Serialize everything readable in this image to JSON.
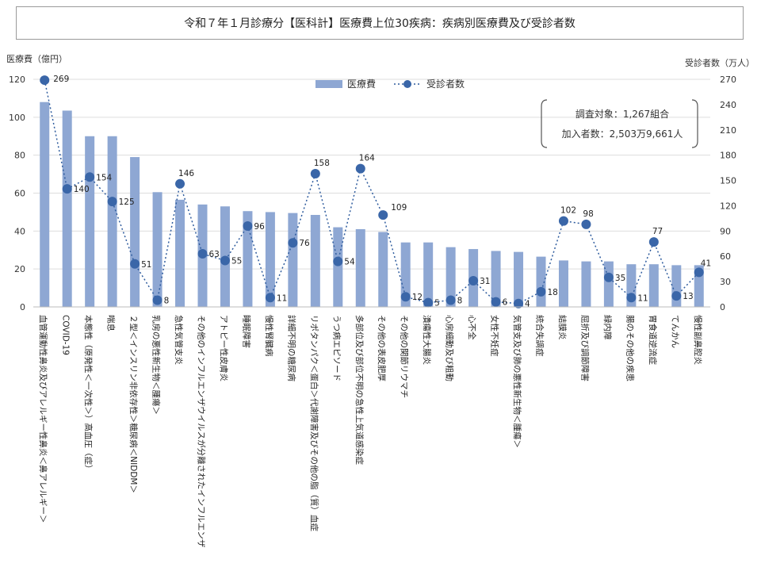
{
  "title": "令和７年１月診療分【医科計】医療費上位30疾病：疾病別医療費及び受診者数",
  "note": {
    "line1": "調査対象：1,267組合",
    "line2": "加入者数：2,503万9,661人"
  },
  "colors": {
    "bar": "#8ea7d3",
    "line": "#2f5c9e",
    "marker": "#3a66a8"
  },
  "chart_data": {
    "type": "bar+line",
    "ylabel_left": "医療費（億円）",
    "ylabel_right": "受診者数（万人）",
    "ylim_left": [
      0,
      120
    ],
    "yticks_left": [
      0,
      20,
      40,
      60,
      80,
      100,
      120
    ],
    "ylim_right": [
      0,
      270
    ],
    "yticks_right": [
      0,
      30,
      60,
      90,
      120,
      150,
      180,
      210,
      240,
      270
    ],
    "legend": {
      "placement": "top-center",
      "bar": "医療費",
      "line": "受診者数"
    },
    "categories": [
      "血管運動性鼻炎及びアレルギー性鼻炎＜鼻アレルギー＞",
      "COVID-19",
      "本態性（原発性＜一次性＞）高血圧（症）",
      "喘息",
      "２型＜インスリン非依存性＞糖尿病＜NIDDM＞",
      "乳房の悪性新生物＜腫瘍＞",
      "急性気管支炎",
      "その他のインフルエンザウイルスが分離されたインフルエンザ",
      "アトピー性皮膚炎",
      "睡眠障害",
      "慢性腎臓病",
      "詳細不明の糖尿病",
      "リポタンパク＜蛋白＞代謝障害及びその他の脂（質）血症",
      "うつ病エピソード",
      "多部位及び部位不明の急性上気道感染症",
      "その他の表皮肥厚",
      "その他の関節リウマチ",
      "潰瘍性大腸炎",
      "心房細動及び粗動",
      "心不全",
      "女性不妊症",
      "気管支及び肺の悪性新生物＜腫瘍＞",
      "統合失調症",
      "結膜炎",
      "屈折及び調節障害",
      "緑内障",
      "腸のその他の疾患",
      "胃食道逆流症",
      "てんかん",
      "慢性副鼻腔炎"
    ],
    "series": [
      {
        "name": "医療費",
        "type": "bar",
        "axis": "left",
        "values": [
          108,
          103.5,
          90,
          90,
          79,
          60.5,
          56.5,
          54,
          53,
          50.5,
          50,
          49.5,
          48.5,
          42,
          41,
          39.5,
          34,
          34,
          31.5,
          30.5,
          29.5,
          29,
          26.5,
          24.5,
          24,
          24,
          22.5,
          22.5,
          22,
          22
        ]
      },
      {
        "name": "受診者数",
        "type": "line",
        "axis": "right",
        "values": [
          269,
          140,
          154,
          125,
          51,
          8,
          146,
          63,
          55,
          96,
          11,
          76,
          158,
          54,
          164,
          109,
          12,
          5,
          8,
          31,
          6,
          4,
          18,
          102,
          98,
          35,
          11,
          77,
          13,
          41
        ],
        "labels": [
          "269",
          "140",
          "154",
          "125",
          "51",
          "8",
          "146",
          "63",
          "55",
          "96",
          "11",
          "76",
          "158",
          "54",
          "164",
          "109",
          "12",
          "5",
          "8",
          "31",
          "6",
          "4",
          "18",
          "102",
          "98",
          "35",
          "11",
          "77",
          "13",
          "41"
        ]
      }
    ]
  }
}
